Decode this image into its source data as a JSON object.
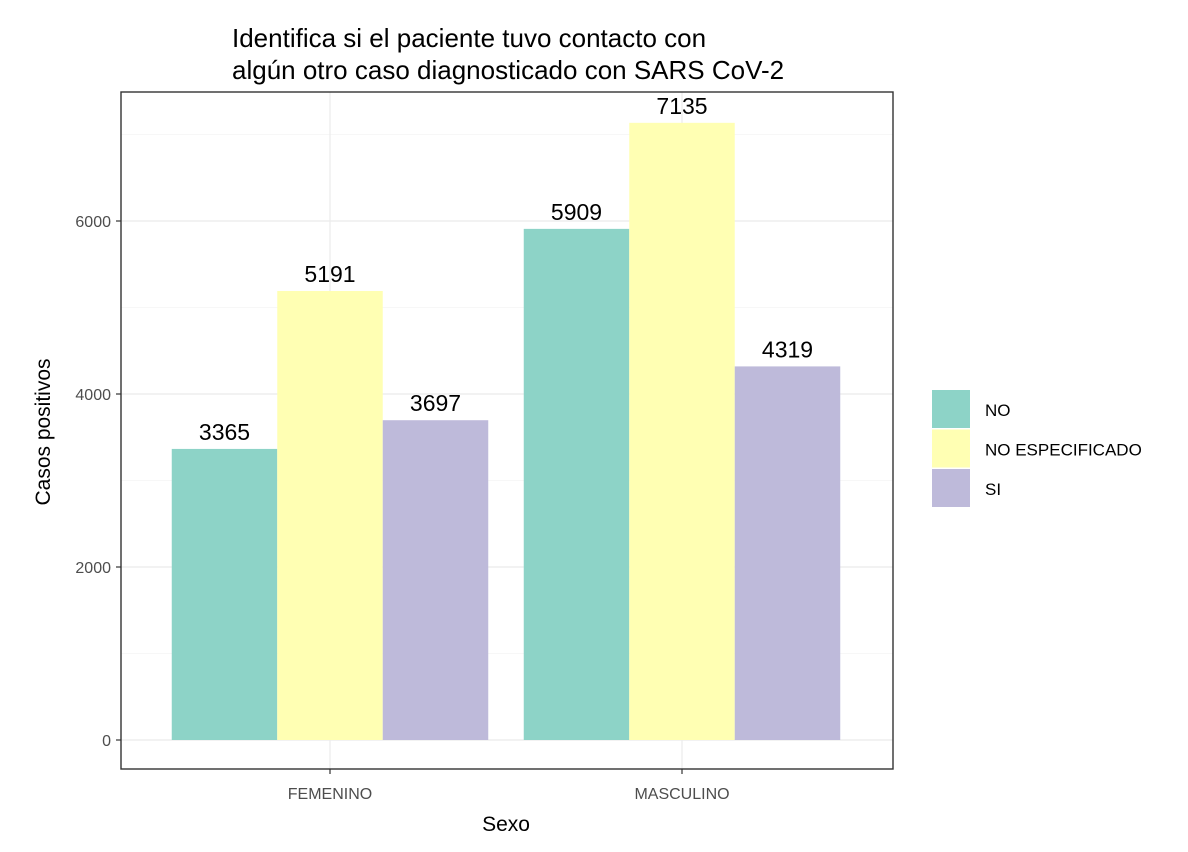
{
  "chart_data": {
    "type": "bar",
    "title_lines": [
      "Identifica si el paciente tuvo contacto con",
      "algún otro caso diagnosticado con SARS CoV-2"
    ],
    "xlabel": "Sexo",
    "ylabel": "Casos positivos",
    "categories": [
      "FEMENINO",
      "MASCULINO"
    ],
    "series": [
      {
        "name": "NO",
        "color": "#8dd3c7",
        "values": [
          3365,
          5909
        ]
      },
      {
        "name": "NO ESPECIFICADO",
        "color": "#ffffb3",
        "values": [
          5191,
          7135
        ]
      },
      {
        "name": "SI",
        "color": "#bebada",
        "values": [
          3697,
          4319
        ]
      }
    ],
    "y_ticks": [
      0,
      2000,
      4000,
      6000
    ],
    "ylim": [
      -356.75,
      7491.75
    ],
    "grid": true,
    "legend_position": "right"
  }
}
